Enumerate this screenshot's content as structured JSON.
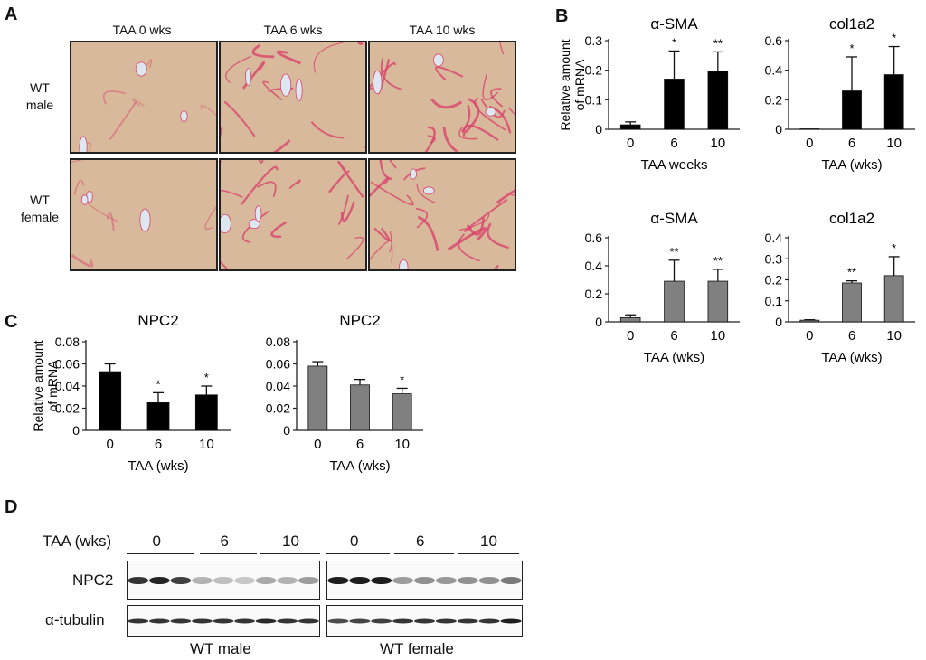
{
  "panels": {
    "A": "A",
    "B": "B",
    "C": "C",
    "D": "D"
  },
  "panel_a": {
    "columns": [
      "TAA  0 wks",
      "TAA  6 wks",
      "TAA  10 wks"
    ],
    "rows": [
      {
        "line1": "WT",
        "line2": "male"
      },
      {
        "line1": "WT",
        "line2": "female"
      }
    ],
    "tile_colors": {
      "tissue": "#d9b99b",
      "stain": "#d8456e",
      "vessel": "#dde7ef"
    }
  },
  "shared_axis": {
    "ylabel_line1": "Relative  amount",
    "ylabel_line2": "of mRNA"
  },
  "colors": {
    "male_bar": "#000000",
    "female_bar": "#808080"
  },
  "chart_data": [
    {
      "id": "b-male-asma",
      "type": "bar",
      "title": "α-SMA",
      "xlabel": "TAA weeks",
      "ylabel": "Relative  amount of mRNA",
      "categories": [
        "0",
        "6",
        "10"
      ],
      "values": [
        0.015,
        0.17,
        0.197
      ],
      "errors": [
        0.01,
        0.095,
        0.065
      ],
      "significance": [
        "",
        "*",
        "**"
      ],
      "ylim": [
        0,
        0.3
      ],
      "yticks": [
        "0",
        "0.1",
        "0.2",
        "0.3"
      ],
      "bar_color": "#000000"
    },
    {
      "id": "b-male-col1a2",
      "type": "bar",
      "title": "col1a2",
      "xlabel": "TAA  (wks)",
      "ylabel": "",
      "categories": [
        "0",
        "6",
        "10"
      ],
      "values": [
        0.003,
        0.26,
        0.37
      ],
      "errors": [
        0.0,
        0.23,
        0.19
      ],
      "significance": [
        "",
        "*",
        "*"
      ],
      "ylim": [
        0,
        0.6
      ],
      "yticks": [
        "0",
        "0.2",
        "0.4",
        "0.6"
      ],
      "bar_color": "#000000"
    },
    {
      "id": "b-female-asma",
      "type": "bar",
      "title": "α-SMA",
      "xlabel": "TAA  (wks)",
      "ylabel": "",
      "categories": [
        "0",
        "6",
        "10"
      ],
      "values": [
        0.03,
        0.29,
        0.29
      ],
      "errors": [
        0.02,
        0.15,
        0.085
      ],
      "significance": [
        "",
        "**",
        "**"
      ],
      "ylim": [
        0,
        0.6
      ],
      "yticks": [
        "0",
        "0.2",
        "0.4",
        "0.6"
      ],
      "bar_color": "#808080"
    },
    {
      "id": "b-female-col1a2",
      "type": "bar",
      "title": "col1a2",
      "xlabel": "TAA  (wks)",
      "ylabel": "",
      "categories": [
        "0",
        "6",
        "10"
      ],
      "values": [
        0.008,
        0.185,
        0.22
      ],
      "errors": [
        0.002,
        0.01,
        0.09
      ],
      "significance": [
        "",
        "**",
        "*"
      ],
      "ylim": [
        0,
        0.4
      ],
      "yticks": [
        "0",
        "0.1",
        "0.2",
        "0.3",
        "0.4"
      ],
      "bar_color": "#808080"
    },
    {
      "id": "c-male-npc2",
      "type": "bar",
      "title": "NPC2",
      "xlabel": "TAA  (wks)",
      "ylabel": "Relative  amount of mRNA",
      "categories": [
        "0",
        "6",
        "10"
      ],
      "values": [
        0.053,
        0.025,
        0.032
      ],
      "errors": [
        0.007,
        0.009,
        0.008
      ],
      "significance": [
        "",
        "*",
        "*"
      ],
      "ylim": [
        0,
        0.08
      ],
      "yticks": [
        "0",
        "0.02",
        "0.04",
        "0.06",
        "0.08"
      ],
      "bar_color": "#000000"
    },
    {
      "id": "c-female-npc2",
      "type": "bar",
      "title": "NPC2",
      "xlabel": "TAA  (wks)",
      "ylabel": "",
      "categories": [
        "0",
        "6",
        "10"
      ],
      "values": [
        0.058,
        0.041,
        0.033
      ],
      "errors": [
        0.004,
        0.005,
        0.005
      ],
      "significance": [
        "",
        "",
        "*"
      ],
      "ylim": [
        0,
        0.08
      ],
      "yticks": [
        "0",
        "0.02",
        "0.04",
        "0.06",
        "0.08"
      ],
      "bar_color": "#808080"
    }
  ],
  "western_blot": {
    "taa_label": "TAA (wks)",
    "groups": [
      {
        "label": "0"
      },
      {
        "label": "6"
      },
      {
        "label": "10"
      },
      {
        "label": "0"
      },
      {
        "label": "6"
      },
      {
        "label": "10"
      }
    ],
    "rows": [
      {
        "label": "NPC2"
      },
      {
        "label": "α-tubulin"
      }
    ],
    "sexes": [
      "WT male",
      "WT female"
    ],
    "npc2_intensity": [
      0.85,
      0.92,
      0.8,
      0.3,
      0.25,
      0.22,
      0.35,
      0.3,
      0.4,
      0.95,
      0.95,
      0.95,
      0.4,
      0.45,
      0.42,
      0.45,
      0.45,
      0.55
    ],
    "tubulin_intensity": [
      0.85,
      0.85,
      0.85,
      0.85,
      0.85,
      0.85,
      0.9,
      0.85,
      0.85,
      0.75,
      0.78,
      0.8,
      0.85,
      0.85,
      0.85,
      0.85,
      0.85,
      0.95
    ]
  }
}
